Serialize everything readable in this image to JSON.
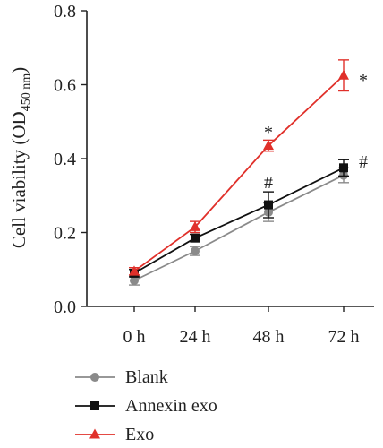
{
  "chart_data": {
    "type": "line",
    "ylabel_main": "Cell viability (OD",
    "ylabel_sub": "450 nm",
    "ylabel_close": ")",
    "xlabel": "",
    "ylim": [
      0.0,
      0.8
    ],
    "yticks": [
      0.0,
      0.2,
      0.4,
      0.6,
      0.8
    ],
    "ytick_labels": [
      "0.0",
      "0.2",
      "0.4",
      "0.6",
      "0.8"
    ],
    "categories": [
      "0 h",
      "24 h",
      "48 h",
      "72 h"
    ],
    "grid": false,
    "legend_placement": "bottom-left",
    "series": [
      {
        "name": "Blank",
        "values": [
          0.07,
          0.15,
          0.255,
          0.355
        ],
        "errors": [
          0.012,
          0.012,
          0.025,
          0.02
        ],
        "color": "#8a8a8a",
        "marker": "circle"
      },
      {
        "name": "Annexin exo",
        "values": [
          0.09,
          0.185,
          0.275,
          0.375
        ],
        "errors": [
          0.01,
          0.01,
          0.035,
          0.022
        ],
        "color": "#111111",
        "marker": "square"
      },
      {
        "name": "Exo",
        "values": [
          0.095,
          0.215,
          0.435,
          0.625
        ],
        "errors": [
          0.01,
          0.015,
          0.015,
          0.042
        ],
        "color": "#e0302a",
        "marker": "triangle"
      }
    ],
    "annotations": [
      {
        "text": "*",
        "category_index": 2,
        "value": 0.485
      },
      {
        "text": "#",
        "category_index": 2,
        "value": 0.335
      },
      {
        "text": "*",
        "category_index": 3,
        "value": 0.625,
        "side": "right"
      },
      {
        "text": "#",
        "category_index": 3,
        "value": 0.39,
        "side": "right"
      }
    ]
  }
}
